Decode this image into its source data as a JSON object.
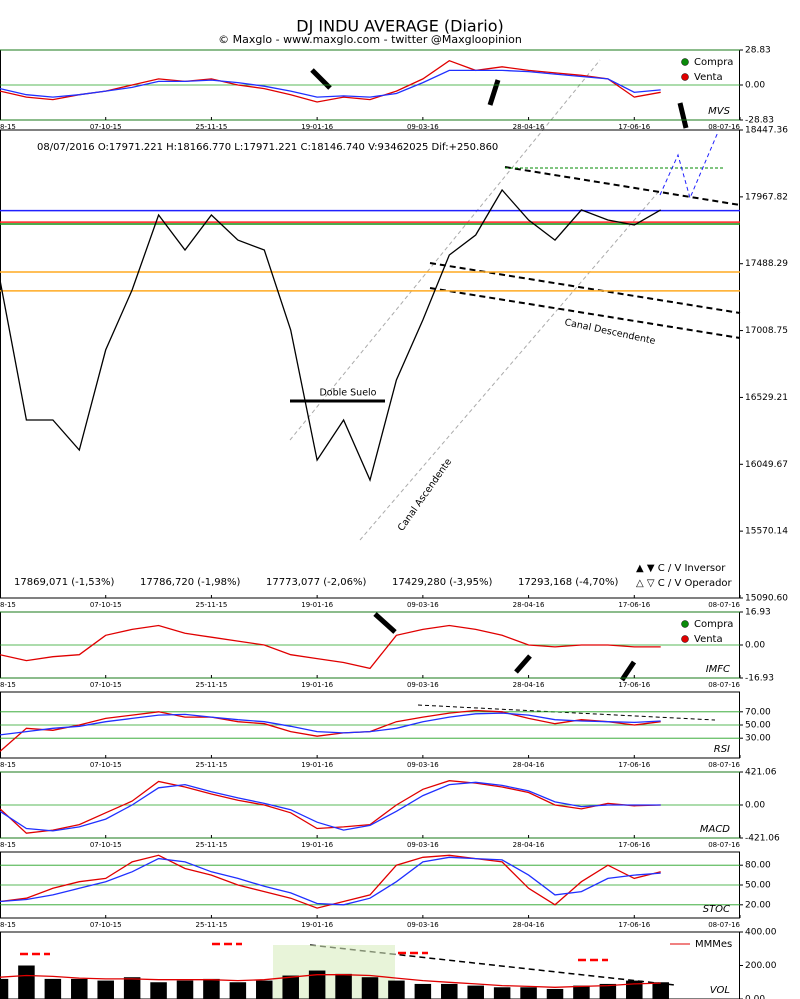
{
  "title": "DJ INDU AVERAGE (Diario)",
  "subtitle": "© Maxglo - www.maxglo.com - twitter @Maxgloopinion",
  "chart_data": [
    {
      "type": "line",
      "label": "MVS",
      "x": [
        0,
        8,
        16,
        24,
        32,
        40,
        48,
        56,
        64,
        72,
        80,
        88,
        96,
        104,
        112,
        120,
        128,
        136,
        144,
        152,
        160,
        168,
        176,
        184,
        192,
        200
      ],
      "xlim": [
        0,
        224
      ],
      "xticks": [
        {
          "value": 0,
          "label": "8-15"
        },
        {
          "value": 32,
          "label": "07-10-15"
        },
        {
          "value": 64,
          "label": "25-11-15"
        },
        {
          "value": 96,
          "label": "19-01-16"
        },
        {
          "value": 128,
          "label": "09-03-16"
        },
        {
          "value": 160,
          "label": "28-04-16"
        },
        {
          "value": 192,
          "label": "17-06-16"
        },
        {
          "value": 224,
          "label": "08-07-16"
        }
      ],
      "ylim": [
        -28.83,
        28.83
      ],
      "yticks": [
        28.83,
        {
          "value": 0,
          "label": "0.00"
        },
        -28.83
      ],
      "grid": true,
      "grid_color": "#20a020",
      "legend": [
        {
          "name": "Compra",
          "color": "#0a8a0a"
        },
        {
          "name": "Venta",
          "color": "#e00000"
        }
      ],
      "series": [
        {
          "color": "#e00000",
          "values": [
            -5,
            -10,
            -12,
            -8,
            -5,
            0,
            5,
            3,
            5,
            0,
            -3,
            -8,
            -14,
            -10,
            -12,
            -5,
            5,
            20,
            12,
            15,
            12,
            10,
            8,
            5,
            -10,
            -6
          ]
        },
        {
          "color": "#2030ff",
          "values": [
            -3,
            -8,
            -10,
            -8,
            -5,
            -2,
            3,
            3,
            4,
            2,
            -1,
            -5,
            -10,
            -9,
            -10,
            -7,
            2,
            12,
            12,
            12,
            11,
            9,
            7,
            5,
            -6,
            -4
          ]
        }
      ]
    },
    {
      "type": "line",
      "info": "08/07/2016  O:17971.221  H:18166.770  L:17971.221  C:18146.740  V:93462025  Dif:+250.860",
      "x": [
        0,
        8,
        16,
        24,
        32,
        40,
        48,
        56,
        64,
        72,
        80,
        88,
        96,
        104,
        112,
        120,
        128,
        136,
        144,
        152,
        160,
        168,
        176,
        184,
        192,
        200
      ],
      "xlim": [
        0,
        224
      ],
      "xticks": [
        {
          "value": 0,
          "label": "8-15"
        },
        {
          "value": 32,
          "label": "07-10-15"
        },
        {
          "value": 64,
          "label": "25-11-15"
        },
        {
          "value": 96,
          "label": "19-01-16"
        },
        {
          "value": 128,
          "label": "09-03-16"
        },
        {
          "value": 160,
          "label": "28-04-16"
        },
        {
          "value": 192,
          "label": "17-06-16"
        },
        {
          "value": 224,
          "label": "08-07-16"
        }
      ],
      "ylim": [
        15090.6,
        18447.36
      ],
      "yticks": [
        18447.36,
        17967.82,
        17488.29,
        17008.75,
        16529.21,
        16049.67,
        15570.14,
        {
          "value": 15090.6,
          "label": "15090.60"
        }
      ],
      "grid": false,
      "series": [
        {
          "color": "#000000",
          "values": [
            17371,
            16367,
            16367,
            16152,
            16870,
            17300,
            17838,
            17587,
            17838,
            17658,
            17587,
            17013,
            16080,
            16367,
            15937,
            16654,
            17085,
            17551,
            17694,
            18017,
            17802,
            17658,
            17874,
            17802,
            17766,
            17874
          ]
        }
      ],
      "levels": [
        {
          "value": 17869.071,
          "label": "17869,071 (-1,53%)",
          "color": "#2020ff"
        },
        {
          "value": 17786.72,
          "label": "17786,720 (-1,98%)",
          "color": "#ff2020"
        },
        {
          "value": 17773.077,
          "label": "17773,077 (-2,06%)",
          "color": "#109010"
        },
        {
          "value": 17429.28,
          "label": "17429,280 (-3,95%)",
          "color": "#ffaa20"
        },
        {
          "value": 17293.168,
          "label": "17293,168 (-4,70%)",
          "color": "#ffaa20"
        }
      ],
      "annotations": [
        "Doble Suelo",
        "Canal Ascendente",
        "Canal  Descendente"
      ],
      "legend_text": [
        "▲ ▼  C / V Inversor",
        "△ ▽  C / V Operador"
      ]
    },
    {
      "type": "line",
      "label": "IMFC",
      "x": [
        0,
        8,
        16,
        24,
        32,
        40,
        48,
        56,
        64,
        72,
        80,
        88,
        96,
        104,
        112,
        120,
        128,
        136,
        144,
        152,
        160,
        168,
        176,
        184,
        192,
        200
      ],
      "xlim": [
        0,
        224
      ],
      "xticks": [
        {
          "value": 0,
          "label": "8-15"
        },
        {
          "value": 32,
          "label": "07-10-15"
        },
        {
          "value": 64,
          "label": "25-11-15"
        },
        {
          "value": 96,
          "label": "19-01-16"
        },
        {
          "value": 128,
          "label": "09-03-16"
        },
        {
          "value": 160,
          "label": "28-04-16"
        },
        {
          "value": 192,
          "label": "17-06-16"
        },
        {
          "value": 224,
          "label": "08-07-16"
        }
      ],
      "ylim": [
        -16.93,
        16.93
      ],
      "yticks": [
        16.93,
        {
          "value": 0,
          "label": "0.00"
        },
        -16.93
      ],
      "grid": true,
      "grid_color": "#20a020",
      "legend": [
        {
          "name": "Compra",
          "color": "#0a8a0a"
        },
        {
          "name": "Venta",
          "color": "#e00000"
        }
      ],
      "series": [
        {
          "color": "#e00000",
          "values": [
            -5,
            -8,
            -6,
            -5,
            5,
            8,
            10,
            6,
            4,
            2,
            0,
            -5,
            -7,
            -9,
            -12,
            5,
            8,
            10,
            8,
            5,
            0,
            -1,
            0,
            0,
            -1,
            -1
          ]
        }
      ]
    },
    {
      "type": "line",
      "label": "RSI",
      "x": [
        0,
        8,
        16,
        24,
        32,
        40,
        48,
        56,
        64,
        72,
        80,
        88,
        96,
        104,
        112,
        120,
        128,
        136,
        144,
        152,
        160,
        168,
        176,
        184,
        192,
        200
      ],
      "xlim": [
        0,
        224
      ],
      "xticks": [
        {
          "value": 0,
          "label": "8-15"
        },
        {
          "value": 32,
          "label": "07-10-15"
        },
        {
          "value": 64,
          "label": "25-11-15"
        },
        {
          "value": 96,
          "label": "19-01-16"
        },
        {
          "value": 128,
          "label": "09-03-16"
        },
        {
          "value": 160,
          "label": "28-04-16"
        },
        {
          "value": 192,
          "label": "17-06-16"
        },
        {
          "value": 224,
          "label": "08-07-16"
        }
      ],
      "ylim": [
        0,
        100
      ],
      "yticks": [
        {
          "value": 70,
          "label": "70.00"
        },
        {
          "value": 50,
          "label": "50.00"
        },
        {
          "value": 30,
          "label": "30.00"
        }
      ],
      "grid": true,
      "grid_color": "#20a020",
      "series": [
        {
          "color": "#e00000",
          "values": [
            10,
            45,
            42,
            50,
            60,
            65,
            70,
            62,
            62,
            55,
            52,
            40,
            33,
            38,
            40,
            55,
            62,
            68,
            72,
            70,
            60,
            52,
            58,
            55,
            50,
            55
          ]
        },
        {
          "color": "#2030ff",
          "values": [
            35,
            40,
            45,
            48,
            55,
            60,
            65,
            66,
            62,
            58,
            55,
            48,
            40,
            38,
            40,
            45,
            55,
            62,
            67,
            68,
            65,
            58,
            56,
            55,
            54,
            56
          ]
        }
      ]
    },
    {
      "type": "line",
      "label": "MACD",
      "x": [
        0,
        8,
        16,
        24,
        32,
        40,
        48,
        56,
        64,
        72,
        80,
        88,
        96,
        104,
        112,
        120,
        128,
        136,
        144,
        152,
        160,
        168,
        176,
        184,
        192,
        200
      ],
      "xlim": [
        0,
        224
      ],
      "xticks": [
        {
          "value": 0,
          "label": "8-15"
        },
        {
          "value": 32,
          "label": "07-10-15"
        },
        {
          "value": 64,
          "label": "25-11-15"
        },
        {
          "value": 96,
          "label": "19-01-16"
        },
        {
          "value": 128,
          "label": "09-03-16"
        },
        {
          "value": 160,
          "label": "28-04-16"
        },
        {
          "value": 192,
          "label": "17-06-16"
        },
        {
          "value": 224,
          "label": "08-07-16"
        }
      ],
      "ylim": [
        -421.06,
        421.06
      ],
      "yticks": [
        421.06,
        {
          "value": 0,
          "label": "0.00"
        },
        -421.06
      ],
      "grid": true,
      "grid_color": "#20a020",
      "series": [
        {
          "color": "#e00000",
          "values": [
            -50,
            -360,
            -320,
            -250,
            -100,
            50,
            300,
            230,
            140,
            60,
            0,
            -100,
            -300,
            -280,
            -250,
            0,
            200,
            310,
            280,
            230,
            160,
            0,
            -50,
            20,
            -10,
            0
          ]
        },
        {
          "color": "#2030ff",
          "values": [
            -80,
            -300,
            -330,
            -280,
            -180,
            0,
            220,
            260,
            170,
            90,
            20,
            -60,
            -220,
            -320,
            -260,
            -80,
            120,
            260,
            290,
            250,
            180,
            40,
            -20,
            0,
            0,
            0
          ]
        }
      ]
    },
    {
      "type": "line",
      "label": "STOC",
      "x": [
        0,
        8,
        16,
        24,
        32,
        40,
        48,
        56,
        64,
        72,
        80,
        88,
        96,
        104,
        112,
        120,
        128,
        136,
        144,
        152,
        160,
        168,
        176,
        184,
        192,
        200
      ],
      "xlim": [
        0,
        224
      ],
      "xticks": [
        {
          "value": 0,
          "label": "8-15"
        },
        {
          "value": 32,
          "label": "07-10-15"
        },
        {
          "value": 64,
          "label": "25-11-15"
        },
        {
          "value": 96,
          "label": "19-01-16"
        },
        {
          "value": 128,
          "label": "09-03-16"
        },
        {
          "value": 160,
          "label": "28-04-16"
        },
        {
          "value": 192,
          "label": "17-06-16"
        },
        {
          "value": 224,
          "label": "08-07-16"
        }
      ],
      "ylim": [
        0,
        100
      ],
      "yticks": [
        {
          "value": 80,
          "label": "80.00"
        },
        {
          "value": 50,
          "label": "50.00"
        },
        {
          "value": 20,
          "label": "20.00"
        }
      ],
      "grid": true,
      "grid_color": "#20a020",
      "series": [
        {
          "color": "#e00000",
          "values": [
            25,
            30,
            45,
            55,
            60,
            85,
            95,
            75,
            65,
            50,
            40,
            30,
            15,
            25,
            35,
            80,
            92,
            95,
            90,
            85,
            45,
            20,
            55,
            80,
            60,
            70
          ]
        },
        {
          "color": "#2030ff",
          "values": [
            25,
            28,
            35,
            45,
            55,
            70,
            90,
            85,
            70,
            60,
            48,
            38,
            22,
            20,
            30,
            55,
            85,
            92,
            90,
            88,
            65,
            35,
            40,
            60,
            65,
            68
          ]
        }
      ]
    },
    {
      "type": "bar",
      "label": "VOL",
      "x": [
        0,
        8,
        16,
        24,
        32,
        40,
        48,
        56,
        64,
        72,
        80,
        88,
        96,
        104,
        112,
        120,
        128,
        136,
        144,
        152,
        160,
        168,
        176,
        184,
        192,
        200
      ],
      "xlim": [
        0,
        224
      ],
      "ylim": [
        0,
        400
      ],
      "yticks": [
        {
          "value": 400,
          "label": "400.00"
        },
        {
          "value": 200,
          "label": "200.00"
        },
        {
          "value": 0,
          "label": "0.00"
        }
      ],
      "grid": false,
      "color": "#000000",
      "values": [
        120,
        200,
        120,
        120,
        110,
        130,
        100,
        110,
        120,
        100,
        110,
        140,
        170,
        150,
        130,
        110,
        90,
        90,
        80,
        70,
        70,
        60,
        80,
        90,
        110,
        100
      ],
      "series": [
        {
          "name": "MMMes",
          "color": "#e00000",
          "values": [
            130,
            140,
            135,
            125,
            120,
            120,
            115,
            115,
            115,
            110,
            115,
            130,
            145,
            145,
            140,
            125,
            110,
            100,
            90,
            80,
            75,
            70,
            75,
            80,
            90,
            95
          ]
        }
      ]
    }
  ]
}
